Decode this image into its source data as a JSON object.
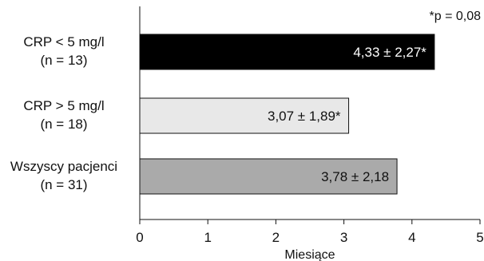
{
  "chart_data": {
    "type": "bar",
    "orientation": "horizontal",
    "annotation": "*p = 0,08",
    "xlabel": "Miesiące",
    "xlim": [
      0,
      5
    ],
    "xticks": [
      "0",
      "1",
      "2",
      "3",
      "4",
      "5"
    ],
    "categories": [
      {
        "line1": "CRP < 5 mg/l",
        "line2": "(n = 13)"
      },
      {
        "line1": "CRP > 5 mg/l",
        "line2": "(n = 18)"
      },
      {
        "line1": "Wszyscy pacjenci",
        "line2": "(n = 31)"
      }
    ],
    "values": [
      4.33,
      3.07,
      3.78
    ],
    "value_labels": [
      "4,33 ± 2,27*",
      "3,07 ± 1,89*",
      "3,78 ± 2,18"
    ],
    "colors": [
      "#000000",
      "#e8e8e8",
      "#aaaaaa"
    ],
    "label_colors": [
      "#ffffff",
      "#111111",
      "#111111"
    ],
    "edge_color": "#111111",
    "grid": false
  }
}
